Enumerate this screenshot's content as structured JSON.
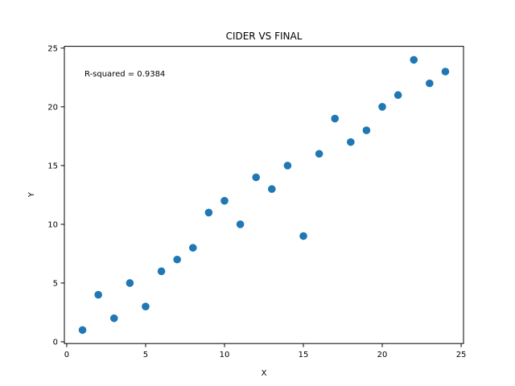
{
  "chart_data": {
    "type": "scatter",
    "title": "CIDER VS FINAL",
    "xlabel": "X",
    "ylabel": "Y",
    "xlim": [
      -0.15,
      25.15
    ],
    "ylim": [
      -0.15,
      25.15
    ],
    "xticks": [
      0,
      5,
      10,
      15,
      20,
      25
    ],
    "yticks": [
      0,
      5,
      10,
      15,
      20,
      25
    ],
    "grid": false,
    "annotation": "R-squared = 0.9384",
    "marker_color": "#1f77b4",
    "series": [
      {
        "x": [
          1,
          2,
          3,
          4,
          5,
          6,
          7,
          8,
          9,
          10,
          11,
          12,
          13,
          14,
          15,
          16,
          17,
          18,
          19,
          20,
          21,
          22,
          23,
          24
        ],
        "y": [
          1,
          4,
          2,
          5,
          3,
          6,
          7,
          8,
          11,
          12,
          10,
          14,
          13,
          15,
          9,
          16,
          19,
          17,
          18,
          20,
          21,
          24,
          22,
          23
        ]
      }
    ]
  }
}
